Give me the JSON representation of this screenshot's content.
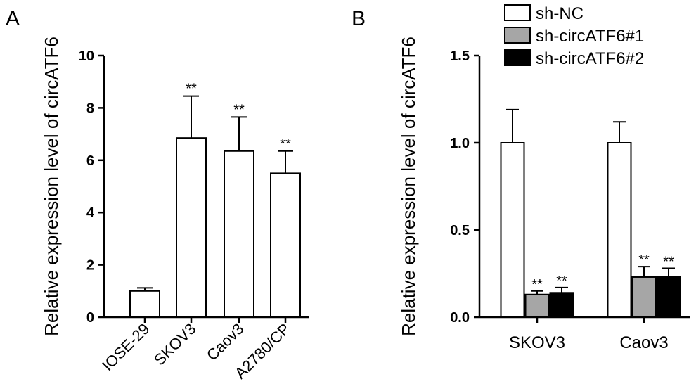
{
  "panels": {
    "a_letter": "A",
    "b_letter": "B"
  },
  "chart_data": [
    {
      "type": "bar",
      "ylabel": "Relative expression level of circATF6",
      "xlabel": "",
      "ylim": [
        0,
        10
      ],
      "yticks": [
        0,
        2,
        4,
        6,
        8,
        10
      ],
      "ytick_labels": [
        "0",
        "2",
        "4",
        "6",
        "8",
        "10"
      ],
      "categories": [
        "IOSE-29",
        "SKOV3",
        "Caov3",
        "A2780/CP"
      ],
      "values": [
        1.0,
        6.85,
        6.35,
        5.5
      ],
      "errors": [
        0.12,
        1.6,
        1.3,
        0.85
      ],
      "annotations": [
        "",
        "**",
        "**",
        "**"
      ],
      "colors": {
        "bar_fill": "#ffffff",
        "bar_edge": "#000000"
      }
    },
    {
      "type": "bar",
      "ylabel": "Relative expression level of  circATF6",
      "xlabel": "",
      "ylim": [
        0,
        1.5
      ],
      "yticks": [
        0,
        0.5,
        1.0,
        1.5
      ],
      "ytick_labels": [
        "0.0",
        "0.5",
        "1.0",
        "1.5"
      ],
      "categories": [
        "SKOV3",
        "Caov3"
      ],
      "legend_position": "top-right",
      "series": [
        {
          "name": "sh-NC",
          "color": "#ffffff",
          "values": [
            1.0,
            1.0
          ],
          "errors": [
            0.19,
            0.12
          ],
          "annotations": [
            "",
            ""
          ]
        },
        {
          "name": "sh-circATF6#1",
          "color": "#a6a6a6",
          "values": [
            0.13,
            0.23
          ],
          "errors": [
            0.02,
            0.06
          ],
          "annotations": [
            "**",
            "**"
          ]
        },
        {
          "name": "sh-circATF6#2",
          "color": "#000000",
          "values": [
            0.14,
            0.23
          ],
          "errors": [
            0.03,
            0.05
          ],
          "annotations": [
            "**",
            "**"
          ]
        }
      ]
    }
  ]
}
